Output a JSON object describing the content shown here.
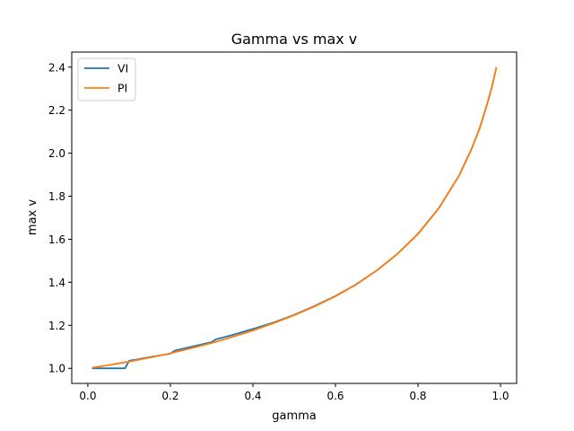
{
  "chart_data": {
    "type": "line",
    "title": "Gamma vs max v",
    "xlabel": "gamma",
    "ylabel": "max v",
    "xlim": [
      -0.039,
      1.039
    ],
    "ylim": [
      0.93,
      2.47
    ],
    "xticks": [
      0.0,
      0.2,
      0.4,
      0.6,
      0.8,
      1.0
    ],
    "xtick_labels": [
      "0.0",
      "0.2",
      "0.4",
      "0.6",
      "0.8",
      "1.0"
    ],
    "yticks": [
      1.0,
      1.2,
      1.4,
      1.6,
      1.8,
      2.0,
      2.2,
      2.4
    ],
    "ytick_labels": [
      "1.0",
      "1.2",
      "1.4",
      "1.6",
      "1.8",
      "2.0",
      "2.2",
      "2.4"
    ],
    "grid": false,
    "legend_position": "top-left",
    "series": [
      {
        "name": "VI",
        "color": "#1f77b4",
        "x": [
          0.01,
          0.03,
          0.05,
          0.07,
          0.09,
          0.1,
          0.12,
          0.15,
          0.18,
          0.2,
          0.21,
          0.25,
          0.3,
          0.31,
          0.35,
          0.4,
          0.45,
          0.5,
          0.55,
          0.6,
          0.65,
          0.7,
          0.75,
          0.8,
          0.85,
          0.9,
          0.93,
          0.95,
          0.97,
          0.98,
          0.99
        ],
        "y": [
          1.0,
          1.0,
          1.0,
          1.0,
          1.0,
          1.035,
          1.042,
          1.052,
          1.062,
          1.068,
          1.082,
          1.1,
          1.122,
          1.135,
          1.155,
          1.183,
          1.213,
          1.249,
          1.29,
          1.336,
          1.39,
          1.455,
          1.532,
          1.625,
          1.743,
          1.897,
          2.02,
          2.12,
          2.245,
          2.315,
          2.4
        ]
      },
      {
        "name": "PI",
        "color": "#ff7f0e",
        "x": [
          0.01,
          0.05,
          0.1,
          0.15,
          0.2,
          0.25,
          0.3,
          0.35,
          0.4,
          0.45,
          0.5,
          0.55,
          0.6,
          0.65,
          0.7,
          0.75,
          0.8,
          0.85,
          0.9,
          0.93,
          0.95,
          0.97,
          0.98,
          0.99
        ],
        "y": [
          1.003,
          1.015,
          1.031,
          1.05,
          1.07,
          1.093,
          1.118,
          1.146,
          1.176,
          1.21,
          1.247,
          1.288,
          1.335,
          1.389,
          1.454,
          1.531,
          1.624,
          1.742,
          1.896,
          2.019,
          2.118,
          2.243,
          2.314,
          2.4
        ]
      }
    ]
  }
}
